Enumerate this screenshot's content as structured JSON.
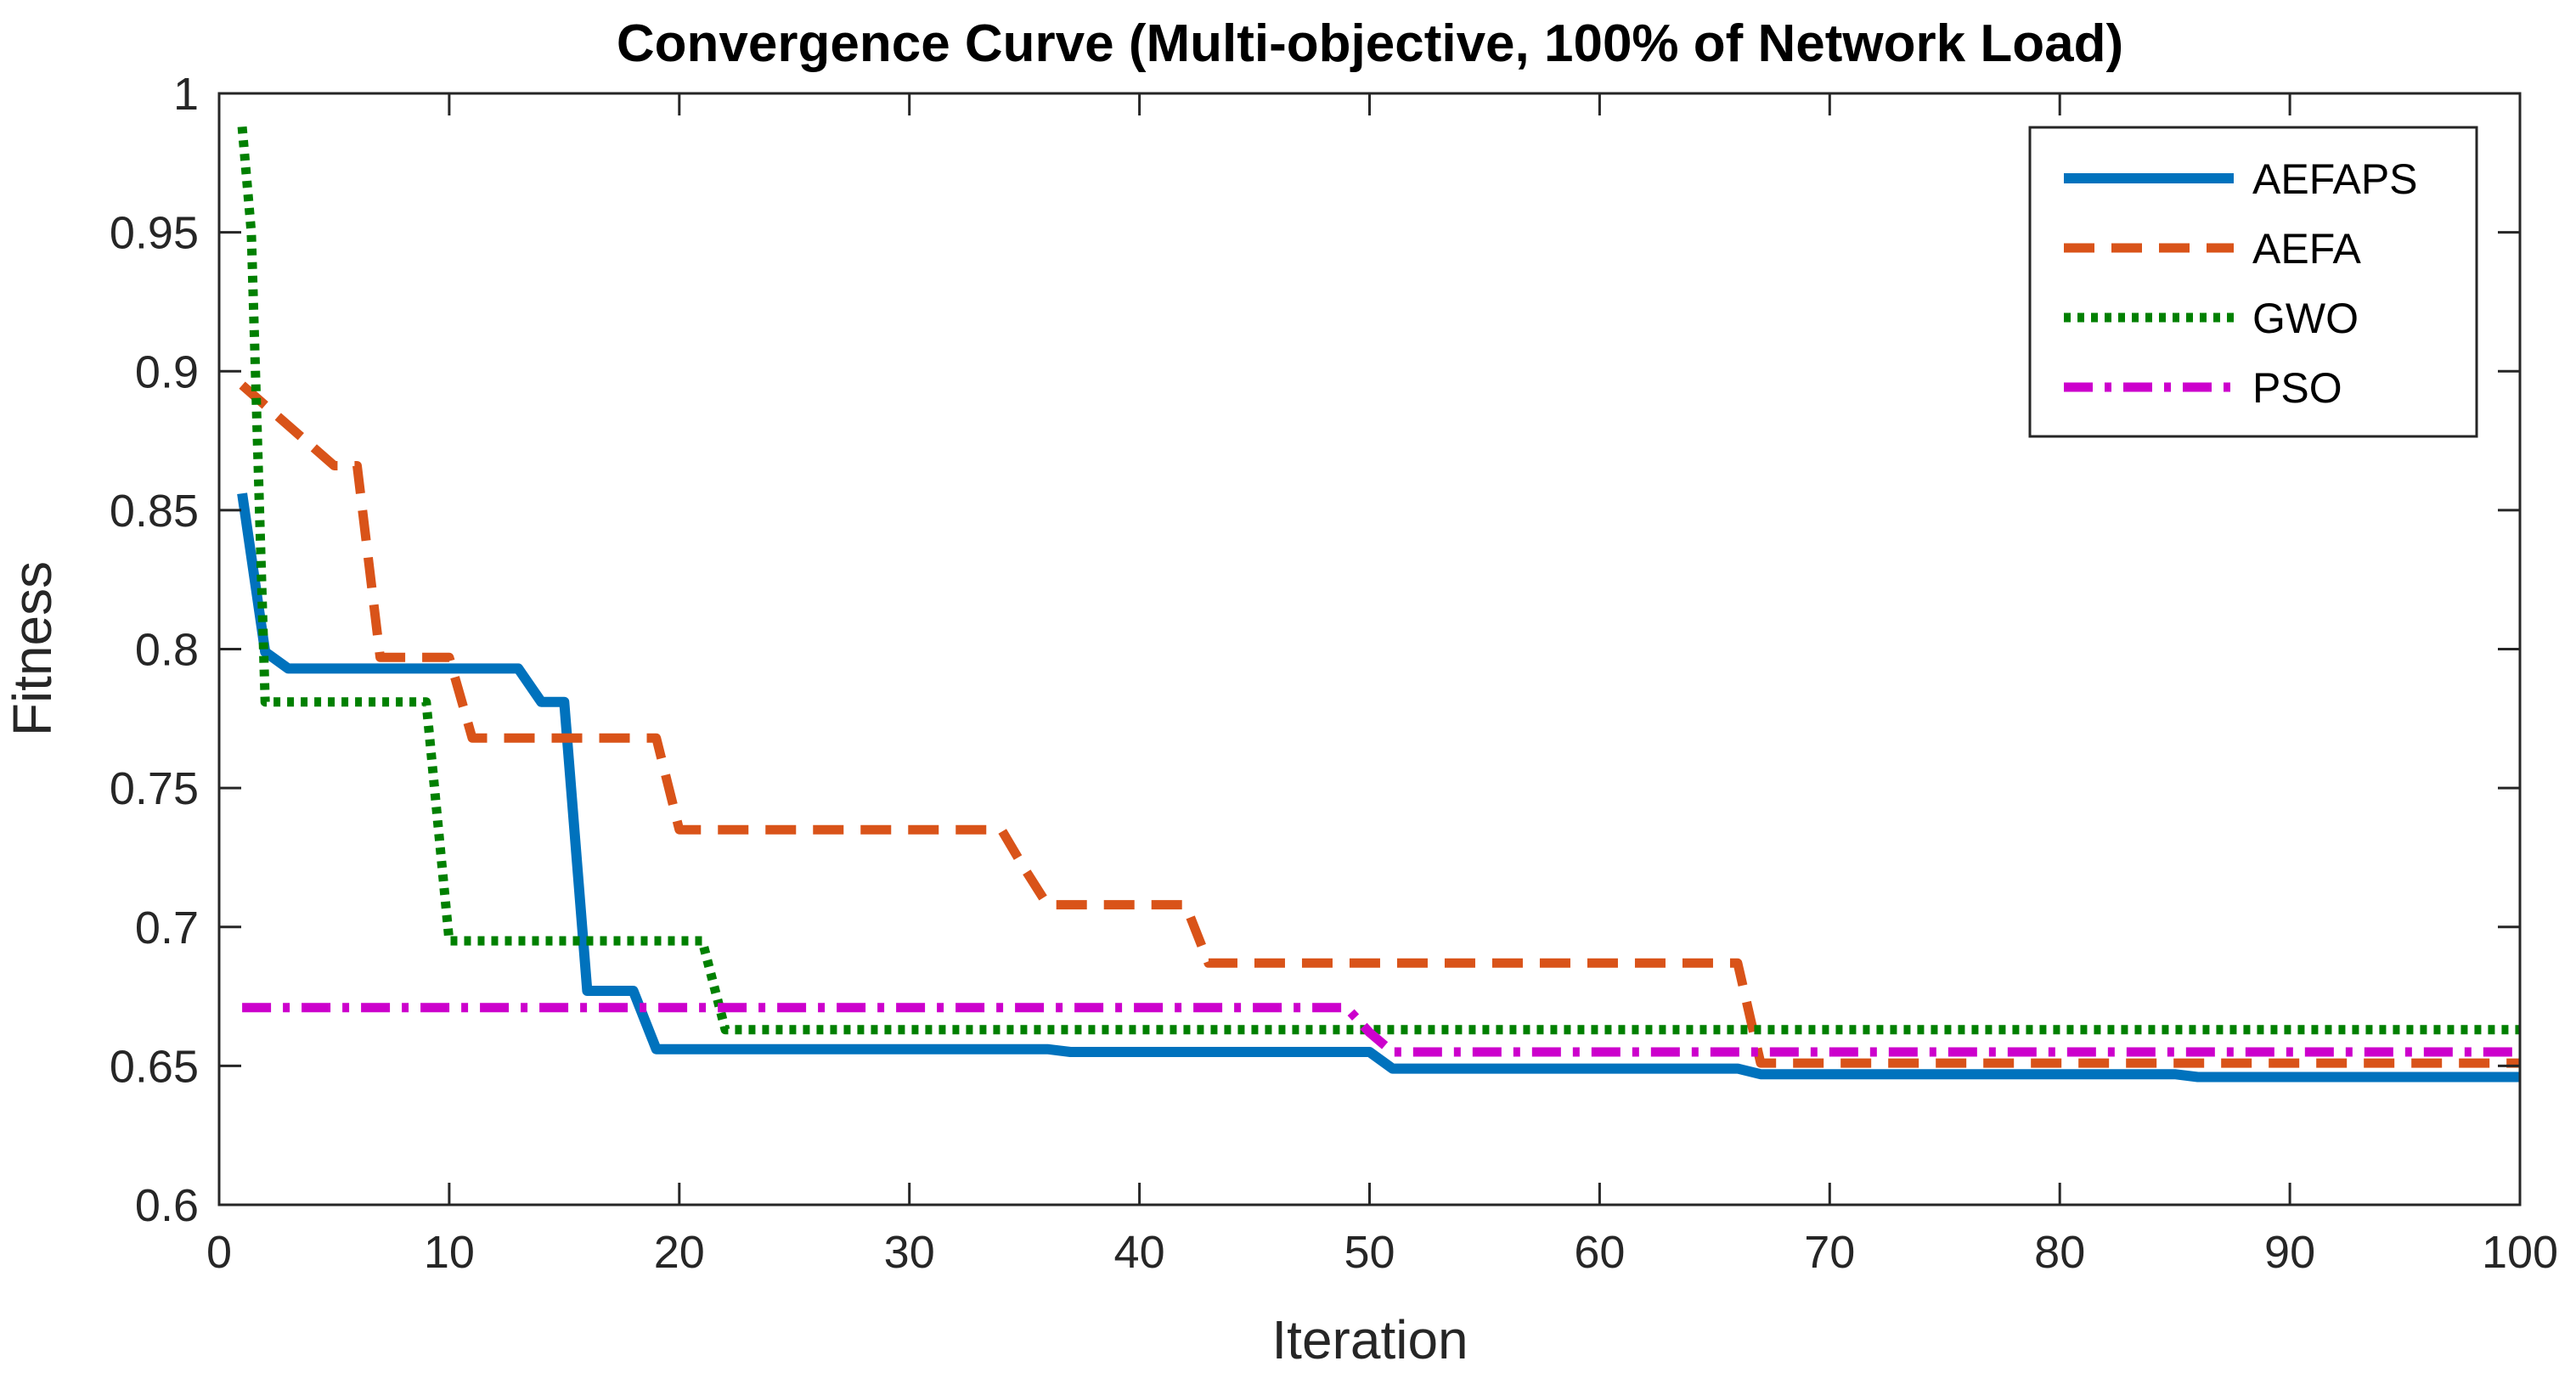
{
  "chart_data": {
    "type": "line",
    "title": "Convergence Curve (Multi-objective, 100% of Network Load)",
    "xlabel": "Iteration",
    "ylabel": "Fitness",
    "xlim": [
      0,
      100
    ],
    "ylim": [
      0.6,
      1
    ],
    "xticks": [
      0,
      10,
      20,
      30,
      40,
      50,
      60,
      70,
      80,
      90,
      100
    ],
    "xtick_labels": [
      "0",
      "10",
      "20",
      "30",
      "40",
      "50",
      "60",
      "70",
      "80",
      "90",
      "100"
    ],
    "yticks": [
      0.6,
      0.65,
      0.7,
      0.75,
      0.8,
      0.85,
      0.9,
      0.95,
      1
    ],
    "ytick_labels": [
      "0.6",
      "0.65",
      "0.7",
      "0.75",
      "0.8",
      "0.85",
      "0.9",
      "0.95",
      "1"
    ],
    "grid": false,
    "legend_position": "top-right",
    "series": [
      {
        "name": "AEFAPS",
        "color": "#0072BD",
        "style": "solid",
        "points": [
          [
            1,
            0.856
          ],
          [
            2,
            0.799
          ],
          [
            3,
            0.793
          ],
          [
            13,
            0.793
          ],
          [
            14,
            0.781
          ],
          [
            15,
            0.781
          ],
          [
            16,
            0.677
          ],
          [
            18,
            0.677
          ],
          [
            19,
            0.656
          ],
          [
            36,
            0.656
          ],
          [
            37,
            0.655
          ],
          [
            50,
            0.655
          ],
          [
            51,
            0.649
          ],
          [
            66,
            0.649
          ],
          [
            67,
            0.647
          ],
          [
            85,
            0.647
          ],
          [
            86,
            0.646
          ],
          [
            100,
            0.646
          ]
        ]
      },
      {
        "name": "AEFA",
        "color": "#D95319",
        "style": "dashed",
        "points": [
          [
            1,
            0.895
          ],
          [
            5,
            0.866
          ],
          [
            6,
            0.866
          ],
          [
            7,
            0.797
          ],
          [
            10,
            0.797
          ],
          [
            11,
            0.768
          ],
          [
            19,
            0.768
          ],
          [
            20,
            0.735
          ],
          [
            34,
            0.735
          ],
          [
            35,
            0.721
          ],
          [
            36,
            0.708
          ],
          [
            42,
            0.708
          ],
          [
            43,
            0.687
          ],
          [
            66,
            0.687
          ],
          [
            67,
            0.651
          ],
          [
            100,
            0.651
          ]
        ]
      },
      {
        "name": "GWO",
        "color": "#008000",
        "style": "dotted",
        "points": [
          [
            1,
            0.988
          ],
          [
            1.4,
            0.95
          ],
          [
            2,
            0.781
          ],
          [
            9,
            0.781
          ],
          [
            10,
            0.695
          ],
          [
            21,
            0.695
          ],
          [
            22,
            0.663
          ],
          [
            100,
            0.663
          ]
        ]
      },
      {
        "name": "PSO",
        "color": "#CC00CC",
        "style": "dashdot",
        "points": [
          [
            1,
            0.671
          ],
          [
            49,
            0.671
          ],
          [
            50,
            0.662
          ],
          [
            51,
            0.655
          ],
          [
            100,
            0.655
          ]
        ]
      }
    ]
  }
}
